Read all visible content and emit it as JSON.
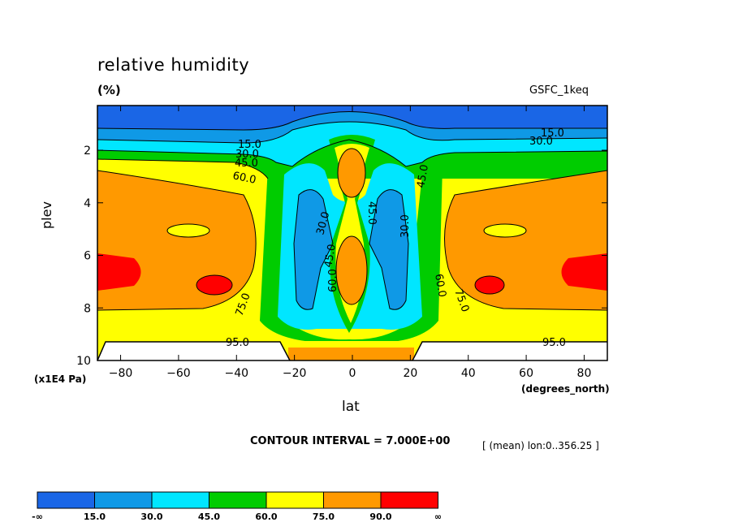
{
  "chart_data": {
    "type": "heatmap",
    "title": "relative humidity",
    "units": "(%)",
    "source_label": "GSFC_1keq",
    "xlabel": "lat",
    "xunit": "(degrees_north)",
    "ylabel": "plev",
    "yunit": "(x1E4 Pa)",
    "x_ticks": [
      -80,
      -60,
      -40,
      -20,
      0,
      20,
      40,
      60,
      80
    ],
    "y_ticks": [
      2,
      4,
      6,
      8,
      10
    ],
    "xlim": [
      -88,
      88
    ],
    "ylim": [
      10,
      0.3
    ],
    "contour_interval_text": "CONTOUR INTERVAL = 7.000E+00",
    "mean_text": "[ (mean) lon:0..356.25 ]",
    "contour_labels": [
      "15.0",
      "30.0",
      "45.0",
      "60.0",
      "75.0",
      "15.0",
      "30.0",
      "45.0",
      "30.0",
      "45.0",
      "60.0",
      "45.0",
      "30.0",
      "60.0",
      "75.0",
      "95.0",
      "95.0"
    ],
    "colorbar": {
      "labels": [
        "-∞",
        "15.0",
        "30.0",
        "45.0",
        "60.0",
        "75.0",
        "90.0",
        "∞"
      ],
      "colors": [
        "#1a66e6",
        "#0f99e6",
        "#00e6ff",
        "#00cc00",
        "#ffff00",
        "#ff9900",
        "#ff0000"
      ]
    },
    "grid": false
  }
}
